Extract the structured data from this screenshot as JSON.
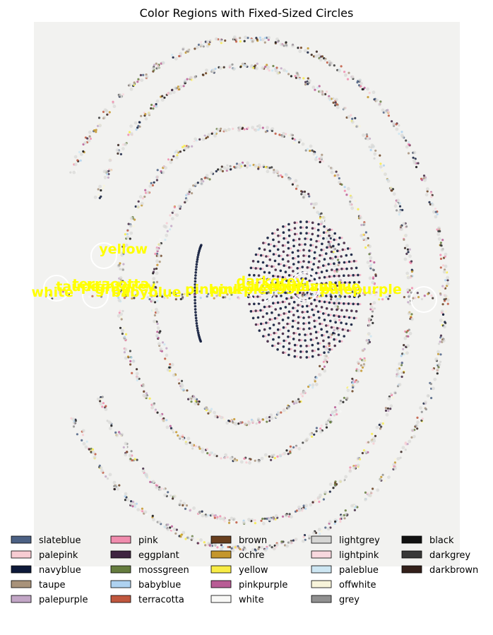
{
  "chart_data": {
    "type": "scatter",
    "title": "Color Regions with Fixed-Sized Circles",
    "axes_visible": false,
    "background": "#f2f2f0",
    "legend_placement": "bottom",
    "legend": [
      {
        "name": "slateblue",
        "color": "#4c6184"
      },
      {
        "name": "palepink",
        "color": "#f7ccd2"
      },
      {
        "name": "navyblue",
        "color": "#0e1a3a"
      },
      {
        "name": "taupe",
        "color": "#a8927a"
      },
      {
        "name": "palepurple",
        "color": "#c2a6c6"
      },
      {
        "name": "pink",
        "color": "#f08cad"
      },
      {
        "name": "eggplant",
        "color": "#3e2440"
      },
      {
        "name": "mossgreen",
        "color": "#657c3e"
      },
      {
        "name": "babyblue",
        "color": "#aed2f0"
      },
      {
        "name": "terracotta",
        "color": "#c0573e"
      },
      {
        "name": "brown",
        "color": "#693f1e"
      },
      {
        "name": "ochre",
        "color": "#c4962c"
      },
      {
        "name": "yellow",
        "color": "#f8ec46"
      },
      {
        "name": "pinkpurple",
        "color": "#b85c95"
      },
      {
        "name": "white",
        "color": "#f8f8f6"
      },
      {
        "name": "lightgrey",
        "color": "#d6d6d4"
      },
      {
        "name": "lightpink",
        "color": "#f8d8de"
      },
      {
        "name": "paleblue",
        "color": "#cde6f2"
      },
      {
        "name": "offwhite",
        "color": "#f8f4da"
      },
      {
        "name": "grey",
        "color": "#909090"
      },
      {
        "name": "black",
        "color": "#111111"
      },
      {
        "name": "darkgrey",
        "color": "#383838"
      },
      {
        "name": "darkbrown",
        "color": "#33201a"
      }
    ],
    "annotations": [
      {
        "text": "yellow",
        "x": -0.72,
        "y": 0.15
      },
      {
        "text": "white",
        "x": -1.05,
        "y": -0.01
      },
      {
        "text": "taupe",
        "x": -0.93,
        "y": 0.01
      },
      {
        "text": "terracotta",
        "x": -0.85,
        "y": 0.02
      },
      {
        "text": "lightgrey",
        "x": -0.78,
        "y": 0.01
      },
      {
        "text": "grey",
        "x": -0.74,
        "y": 0.0
      },
      {
        "text": "babyblue",
        "x": -0.66,
        "y": -0.01
      },
      {
        "text": "pinkpurple",
        "x": -0.3,
        "y": 0.0
      },
      {
        "text": "pink",
        "x": -0.18,
        "y": 0.0
      },
      {
        "text": "palepink",
        "x": -0.05,
        "y": 0.01
      },
      {
        "text": "darkgrey",
        "x": -0.05,
        "y": 0.03
      },
      {
        "text": "eggplant",
        "x": 0.1,
        "y": 0.01
      },
      {
        "text": "navyblue",
        "x": 0.22,
        "y": 0.01
      },
      {
        "text": "palepurple",
        "x": 0.36,
        "y": 0.0
      }
    ]
  }
}
